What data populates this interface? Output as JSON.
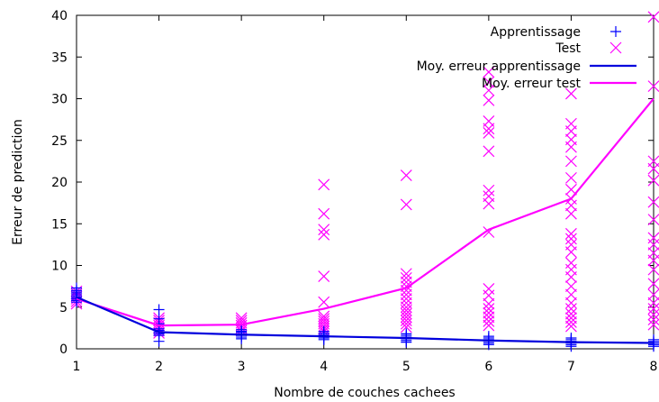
{
  "chart_data": {
    "type": "scatter",
    "xlabel": "Nombre de couches cachees",
    "ylabel": "Erreur de prediction",
    "xlim": [
      1,
      8
    ],
    "ylim": [
      0,
      40
    ],
    "x_ticks": [
      "1",
      "2",
      "3",
      "4",
      "5",
      "6",
      "7",
      "8"
    ],
    "y_ticks": [
      "0",
      "5",
      "10",
      "15",
      "20",
      "25",
      "30",
      "35",
      "40"
    ],
    "grid": false,
    "legend_position": "top-right",
    "colors": {
      "train": "#0000ff",
      "test": "#ff00ff",
      "train_mean": "#0000dd",
      "test_mean": "#ff00ff"
    },
    "series": [
      {
        "name": "Apprentissage",
        "kind": "points",
        "marker": "plus",
        "points": [
          [
            1,
            5.6
          ],
          [
            1,
            5.8
          ],
          [
            1,
            6.0
          ],
          [
            1,
            6.2
          ],
          [
            1,
            6.4
          ],
          [
            1,
            6.6
          ],
          [
            1,
            6.8
          ],
          [
            1,
            7.0
          ],
          [
            1,
            7.3
          ],
          [
            2,
            0.9
          ],
          [
            2,
            1.6
          ],
          [
            2,
            1.8
          ],
          [
            2,
            2.0
          ],
          [
            2,
            2.2
          ],
          [
            2,
            2.4
          ],
          [
            2,
            3.0
          ],
          [
            2,
            3.6
          ],
          [
            2,
            4.7
          ],
          [
            3,
            1.2
          ],
          [
            3,
            1.4
          ],
          [
            3,
            1.6
          ],
          [
            3,
            1.8
          ],
          [
            3,
            2.0
          ],
          [
            3,
            2.1
          ],
          [
            3,
            2.3
          ],
          [
            4,
            1.1
          ],
          [
            4,
            1.3
          ],
          [
            4,
            1.5
          ],
          [
            4,
            1.7
          ],
          [
            4,
            1.9
          ],
          [
            4,
            2.1
          ],
          [
            5,
            0.8
          ],
          [
            5,
            1.0
          ],
          [
            5,
            1.2
          ],
          [
            5,
            1.4
          ],
          [
            5,
            1.6
          ],
          [
            5,
            1.8
          ],
          [
            6,
            0.5
          ],
          [
            6,
            0.7
          ],
          [
            6,
            0.9
          ],
          [
            6,
            1.1
          ],
          [
            6,
            1.3
          ],
          [
            6,
            1.5
          ],
          [
            7,
            0.3
          ],
          [
            7,
            0.5
          ],
          [
            7,
            0.7
          ],
          [
            7,
            0.9
          ],
          [
            7,
            1.1
          ],
          [
            7,
            1.3
          ],
          [
            8,
            0.3
          ],
          [
            8,
            0.5
          ],
          [
            8,
            0.7
          ],
          [
            8,
            0.9
          ],
          [
            8,
            1.1
          ]
        ]
      },
      {
        "name": "Test",
        "kind": "points",
        "marker": "cross",
        "points": [
          [
            1,
            5.4
          ],
          [
            1,
            5.7
          ],
          [
            1,
            6.0
          ],
          [
            1,
            6.3
          ],
          [
            1,
            6.6
          ],
          [
            1,
            6.9
          ],
          [
            2,
            1.9
          ],
          [
            2,
            2.2
          ],
          [
            2,
            2.5
          ],
          [
            2,
            2.8
          ],
          [
            2,
            3.1
          ],
          [
            2,
            3.4
          ],
          [
            2,
            3.7
          ],
          [
            3,
            2.2
          ],
          [
            3,
            2.5
          ],
          [
            3,
            2.8
          ],
          [
            3,
            3.1
          ],
          [
            3,
            3.4
          ],
          [
            3,
            3.7
          ],
          [
            4,
            2.1
          ],
          [
            4,
            2.4
          ],
          [
            4,
            2.7
          ],
          [
            4,
            3.0
          ],
          [
            4,
            3.3
          ],
          [
            4,
            3.6
          ],
          [
            4,
            3.9
          ],
          [
            4,
            5.6
          ],
          [
            4,
            8.7
          ],
          [
            4,
            13.7
          ],
          [
            4,
            14.3
          ],
          [
            4,
            16.2
          ],
          [
            4,
            19.7
          ],
          [
            5,
            2.6
          ],
          [
            5,
            3.0
          ],
          [
            5,
            3.4
          ],
          [
            5,
            3.8
          ],
          [
            5,
            4.2
          ],
          [
            5,
            4.6
          ],
          [
            5,
            5.0
          ],
          [
            5,
            5.5
          ],
          [
            5,
            6.0
          ],
          [
            5,
            6.5
          ],
          [
            5,
            7.0
          ],
          [
            5,
            7.5
          ],
          [
            5,
            8.0
          ],
          [
            5,
            8.5
          ],
          [
            5,
            9.0
          ],
          [
            5,
            17.3
          ],
          [
            5,
            20.8
          ],
          [
            6,
            2.8
          ],
          [
            6,
            3.3
          ],
          [
            6,
            3.8
          ],
          [
            6,
            4.3
          ],
          [
            6,
            4.8
          ],
          [
            6,
            5.4
          ],
          [
            6,
            6.4
          ],
          [
            6,
            7.2
          ],
          [
            6,
            14.0
          ],
          [
            6,
            17.4
          ],
          [
            6,
            18.3
          ],
          [
            6,
            19.0
          ],
          [
            6,
            23.7
          ],
          [
            6,
            25.9
          ],
          [
            6,
            26.4
          ],
          [
            6,
            27.3
          ],
          [
            6,
            29.8
          ],
          [
            6,
            31.0
          ],
          [
            6,
            32.0
          ],
          [
            6,
            33.2
          ],
          [
            7,
            2.7
          ],
          [
            7,
            3.2
          ],
          [
            7,
            3.7
          ],
          [
            7,
            4.2
          ],
          [
            7,
            4.8
          ],
          [
            7,
            5.5
          ],
          [
            7,
            6.5
          ],
          [
            7,
            7.5
          ],
          [
            7,
            8.6
          ],
          [
            7,
            9.5
          ],
          [
            7,
            10.3
          ],
          [
            7,
            11.6
          ],
          [
            7,
            12.5
          ],
          [
            7,
            13.2
          ],
          [
            7,
            13.8
          ],
          [
            7,
            16.2
          ],
          [
            7,
            17.2
          ],
          [
            7,
            18.0
          ],
          [
            7,
            19.1
          ],
          [
            7,
            20.5
          ],
          [
            7,
            22.5
          ],
          [
            7,
            24.2
          ],
          [
            7,
            25.1
          ],
          [
            7,
            26.1
          ],
          [
            7,
            27.0
          ],
          [
            7,
            30.6
          ],
          [
            8,
            2.9
          ],
          [
            8,
            3.5
          ],
          [
            8,
            4.1
          ],
          [
            8,
            4.8
          ],
          [
            8,
            5.5
          ],
          [
            8,
            6.5
          ],
          [
            8,
            7.8
          ],
          [
            8,
            9.5
          ],
          [
            8,
            10.6
          ],
          [
            8,
            11.5
          ],
          [
            8,
            12.5
          ],
          [
            8,
            13.3
          ],
          [
            8,
            15.5
          ],
          [
            8,
            17.6
          ],
          [
            8,
            20.2
          ],
          [
            8,
            21.6
          ],
          [
            8,
            22.5
          ],
          [
            8,
            31.5
          ],
          [
            8,
            39.8
          ]
        ]
      },
      {
        "name": "Moy. erreur apprentissage",
        "kind": "line",
        "x": [
          1,
          2,
          3,
          4,
          5,
          6,
          7,
          8
        ],
        "y": [
          6.2,
          2.0,
          1.7,
          1.5,
          1.3,
          1.0,
          0.8,
          0.7
        ]
      },
      {
        "name": "Moy. erreur test",
        "kind": "line",
        "x": [
          1,
          2,
          3,
          4,
          5,
          6,
          7,
          8
        ],
        "y": [
          6.0,
          2.8,
          2.9,
          4.8,
          7.3,
          14.3,
          18.0,
          30.0
        ]
      }
    ]
  }
}
